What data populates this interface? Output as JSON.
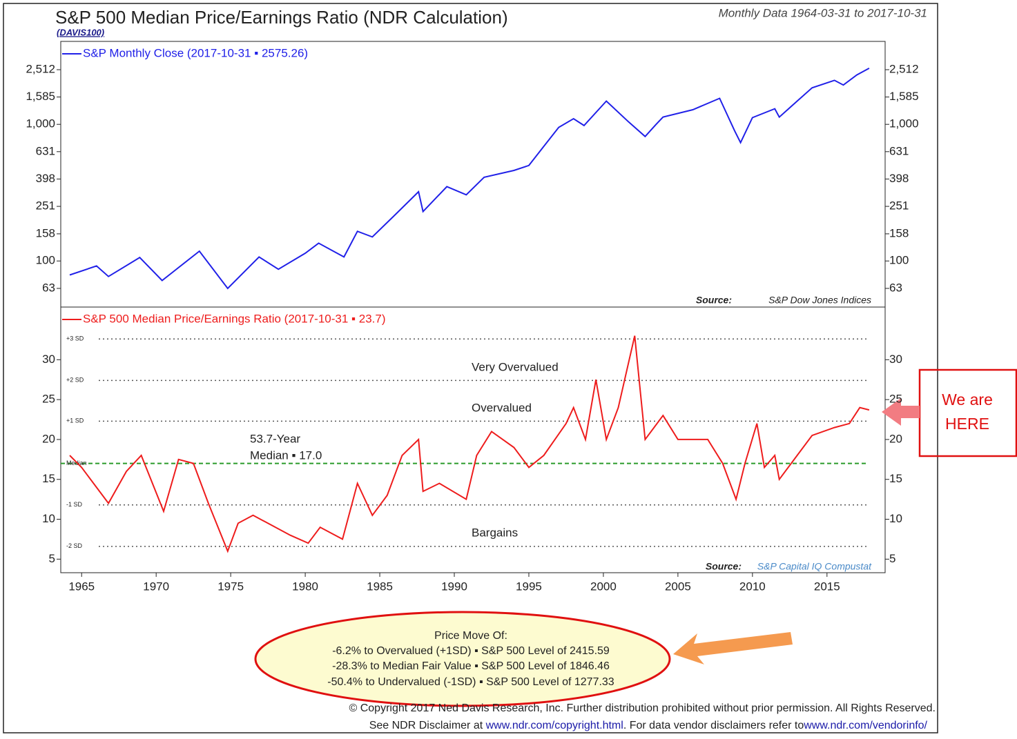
{
  "header": {
    "title": "S&P 500 Median Price/Earnings Ratio (NDR Calculation)",
    "code": "(DAVIS100)",
    "range": "Monthly Data 1964-03-31 to 2017-10-31"
  },
  "chart_data": [
    {
      "type": "line",
      "log_scale": true,
      "series": [
        {
          "name": "S&P Monthly Close (2017-10-31 ▪ 2575.26)",
          "color": "#2020e8",
          "x": [
            1964.2,
            1966.0,
            1966.8,
            1968.9,
            1970.4,
            1972.9,
            1974.8,
            1976.9,
            1978.2,
            1980.0,
            1980.9,
            1982.6,
            1983.5,
            1984.5,
            1985.9,
            1987.6,
            1987.9,
            1989.5,
            1990.8,
            1992.0,
            1994.0,
            1995.0,
            1996.0,
            1997.0,
            1998.0,
            1998.7,
            2000.2,
            2001.7,
            2002.8,
            2003.5,
            2004.0,
            2006.0,
            2007.8,
            2008.8,
            2009.2,
            2010.0,
            2011.5,
            2011.8,
            2013.0,
            2014.0,
            2015.5,
            2016.1,
            2017.0,
            2017.83
          ],
          "values": [
            79,
            92,
            77,
            106,
            72,
            118,
            63,
            107,
            87,
            114,
            135,
            107,
            165,
            150,
            211,
            321,
            230,
            350,
            305,
            410,
            460,
            500,
            690,
            950,
            1100,
            980,
            1480,
            1040,
            815,
            990,
            1130,
            1280,
            1550,
            900,
            735,
            1120,
            1300,
            1130,
            1480,
            1850,
            2100,
            1940,
            2300,
            2575.26
          ]
        }
      ],
      "xlim": [
        1963.6,
        2018.9
      ],
      "ylim": [
        46,
        4046
      ],
      "yticks": [
        63,
        100,
        158,
        251,
        398,
        631,
        {
          "value": 1000,
          "label": "1,000"
        },
        {
          "value": 1585,
          "label": "1,585"
        },
        {
          "value": 2512,
          "label": "2,512"
        }
      ],
      "source_label": "Source:",
      "source": "S&P Dow Jones Indices"
    },
    {
      "type": "line",
      "series": [
        {
          "name": "S&P 500 Median Price/Earnings Ratio (2017-10-31 ▪ 23.7)",
          "color": "#ee1c1c",
          "x": [
            1964.2,
            1965.0,
            1966.8,
            1968.0,
            1969.0,
            1970.5,
            1971.5,
            1972.5,
            1973.5,
            1974.8,
            1975.5,
            1976.5,
            1978.0,
            1979.0,
            1980.2,
            1981.0,
            1982.5,
            1983.5,
            1984.5,
            1985.5,
            1986.5,
            1987.6,
            1987.9,
            1989.0,
            1990.8,
            1991.5,
            1992.5,
            1994.0,
            1995.0,
            1996.0,
            1997.5,
            1998.0,
            1998.8,
            1999.5,
            2000.2,
            2001.0,
            2002.1,
            2002.8,
            2004.0,
            2005.0,
            2007.0,
            2008.0,
            2008.9,
            2009.5,
            2010.3,
            2010.8,
            2011.5,
            2011.8,
            2013.0,
            2014.0,
            2015.5,
            2016.5,
            2017.2,
            2017.83
          ],
          "values": [
            18,
            16.5,
            12,
            16,
            18,
            11,
            17.5,
            17,
            12,
            6,
            9.5,
            10.5,
            9,
            8,
            7,
            9,
            7.5,
            14.5,
            10.5,
            13,
            18,
            20,
            13.5,
            14.5,
            12.5,
            18,
            21,
            19,
            16.5,
            18,
            22,
            24,
            20,
            27.5,
            20,
            24,
            33,
            20,
            23,
            20,
            20,
            17,
            12.5,
            17,
            22,
            16.5,
            18,
            15,
            18,
            20.5,
            21.5,
            22,
            24,
            23.7
          ]
        }
      ],
      "xlim": [
        1963.6,
        2018.9
      ],
      "ylim": [
        3.3,
        36.6
      ],
      "xticks": [
        1965,
        1970,
        1975,
        1980,
        1985,
        1990,
        1995,
        2000,
        2005,
        2010,
        2015
      ],
      "yticks": [
        5,
        10,
        15,
        20,
        25,
        30
      ],
      "reference_lines": [
        {
          "value": 32.6,
          "label": "+3 SD",
          "color": "#555555"
        },
        {
          "value": 27.4,
          "label": "+2 SD",
          "color": "#555555"
        },
        {
          "value": 22.3,
          "label": "+1 SD",
          "color": "#555555"
        },
        {
          "value": 17.0,
          "label": "Median",
          "color": "#2a9a2a"
        },
        {
          "value": 11.8,
          "label": "-1 SD",
          "color": "#555555"
        },
        {
          "value": 6.6,
          "label": "-2 SD",
          "color": "#555555"
        }
      ],
      "annotations": [
        "Very Overvalued",
        "Overvalued",
        "53.7-Year",
        "Median ▪ 17.0",
        "Bargains"
      ],
      "source_label": "Source:",
      "source": "S&P Capital IQ Compustat"
    }
  ],
  "callouts": {
    "here": [
      "We are",
      "HERE"
    ],
    "price_move": [
      "Price Move Of:",
      "-6.2% to Overvalued (+1SD) ▪ S&P 500 Level of 2415.59",
      "-28.3% to Median Fair Value ▪ S&P 500 Level of 1846.46",
      "-50.4% to Undervalued (-1SD) ▪ S&P 500 Level of 1277.33"
    ]
  },
  "footer": {
    "copyright": "© Copyright 2017 Ned Davis Research, Inc. Further distribution prohibited without prior permission. All Rights Reserved.",
    "disclaimer": "See NDR Disclaimer at ",
    "link1": "www.ndr.com/copyright.html",
    "vendor": ". For data vendor disclaimers refer to",
    "link2": "www.ndr.com/vendorinfo/"
  }
}
